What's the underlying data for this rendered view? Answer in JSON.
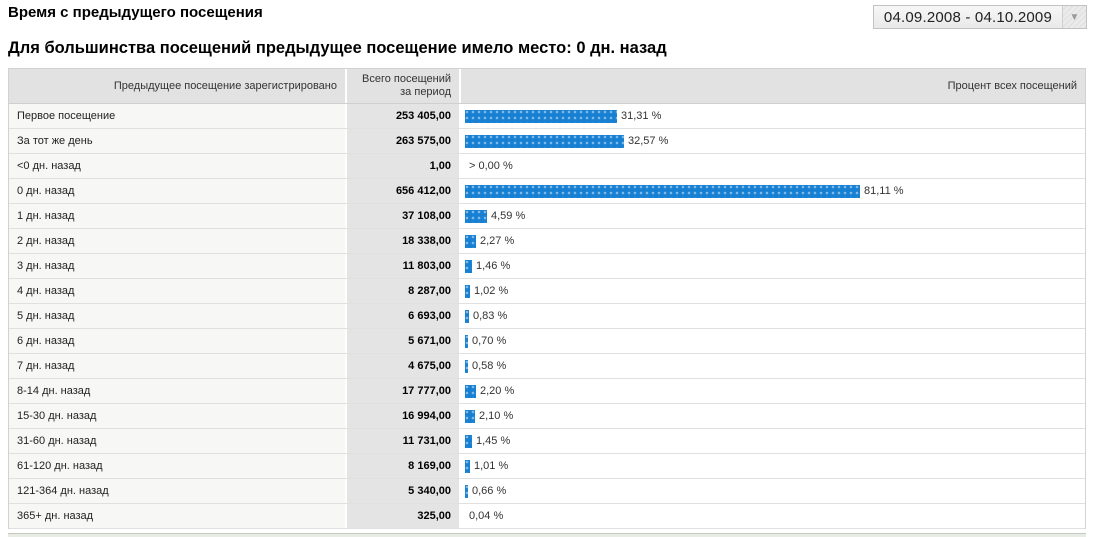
{
  "page": {
    "title": "Время с предыдущего посещения",
    "subtitle": "Для большинства посещений предыдущее посещение имело место: 0 дн. назад"
  },
  "date_range": {
    "label": "04.09.2008 - 04.10.2009",
    "dropdown_icon": "chevron-down"
  },
  "colors": {
    "bar_blue": "#1780d2",
    "header_bg": "#e2e2e2",
    "label_col_bg": "#f7f7f6",
    "value_col_bg": "#e4e4e4"
  },
  "table": {
    "columns": {
      "dimension": "Предыдущее посещение зарегистрировано",
      "visits_line1": "Всего посещений",
      "visits_line2": "за период",
      "percent": "Процент всех посещений"
    },
    "rows": [
      {
        "label": "Первое посещение",
        "visits": "253 405,00",
        "percent_label": "31,31 %",
        "percent": 31.31
      },
      {
        "label": "За тот же день",
        "visits": "263 575,00",
        "percent_label": "32,57 %",
        "percent": 32.57
      },
      {
        "label": "<0 дн. назад",
        "visits": "1,00",
        "percent_label": "> 0,00 %",
        "percent": 0
      },
      {
        "label": "0 дн. назад",
        "visits": "656 412,00",
        "percent_label": "81,11 %",
        "percent": 81.11
      },
      {
        "label": "1 дн. назад",
        "visits": "37 108,00",
        "percent_label": "4,59 %",
        "percent": 4.59
      },
      {
        "label": "2 дн. назад",
        "visits": "18 338,00",
        "percent_label": "2,27 %",
        "percent": 2.27
      },
      {
        "label": "3 дн. назад",
        "visits": "11 803,00",
        "percent_label": "1,46 %",
        "percent": 1.46
      },
      {
        "label": "4 дн. назад",
        "visits": "8 287,00",
        "percent_label": "1,02 %",
        "percent": 1.02
      },
      {
        "label": "5 дн. назад",
        "visits": "6 693,00",
        "percent_label": "0,83 %",
        "percent": 0.83
      },
      {
        "label": "6 дн. назад",
        "visits": "5 671,00",
        "percent_label": "0,70 %",
        "percent": 0.7
      },
      {
        "label": "7 дн. назад",
        "visits": "4 675,00",
        "percent_label": "0,58 %",
        "percent": 0.58
      },
      {
        "label": "8-14 дн. назад",
        "visits": "17 777,00",
        "percent_label": "2,20 %",
        "percent": 2.2
      },
      {
        "label": "15-30 дн. назад",
        "visits": "16 994,00",
        "percent_label": "2,10 %",
        "percent": 2.1
      },
      {
        "label": "31-60 дн. назад",
        "visits": "11 731,00",
        "percent_label": "1,45 %",
        "percent": 1.45
      },
      {
        "label": "61-120 дн. назад",
        "visits": "8 169,00",
        "percent_label": "1,01 %",
        "percent": 1.01
      },
      {
        "label": "121-364 дн. назад",
        "visits": "5 340,00",
        "percent_label": "0,66 %",
        "percent": 0.66
      },
      {
        "label": "365+ дн. назад",
        "visits": "325,00",
        "percent_label": "0,04 %",
        "percent": 0.04
      }
    ]
  },
  "chart_data": {
    "type": "bar",
    "orientation": "horizontal",
    "title": "Время с предыдущего посещения",
    "categories": [
      "Первое посещение",
      "За тот же день",
      "<0 дн. назад",
      "0 дн. назад",
      "1 дн. назад",
      "2 дн. назад",
      "3 дн. назад",
      "4 дн. назад",
      "5 дн. назад",
      "6 дн. назад",
      "7 дн. назад",
      "8-14 дн. назад",
      "15-30 дн. назад",
      "31-60 дн. назад",
      "61-120 дн. назад",
      "121-364 дн. назад",
      "365+ дн. назад"
    ],
    "series": [
      {
        "name": "Всего посещений за период",
        "values": [
          253405,
          263575,
          1,
          656412,
          37108,
          18338,
          11803,
          8287,
          6693,
          5671,
          4675,
          17777,
          16994,
          11731,
          8169,
          5340,
          325
        ]
      },
      {
        "name": "Процент всех посещений",
        "values": [
          31.31,
          32.57,
          0.0,
          81.11,
          4.59,
          2.27,
          1.46,
          1.02,
          0.83,
          0.7,
          0.58,
          2.2,
          2.1,
          1.45,
          1.01,
          0.66,
          0.04
        ]
      }
    ],
    "xlim": [
      0,
      100
    ]
  }
}
